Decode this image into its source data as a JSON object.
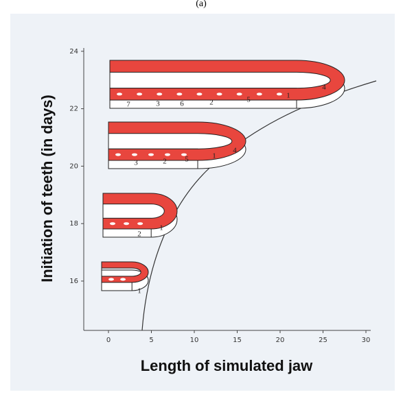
{
  "figure_label": "(a)",
  "y_axis": {
    "label": "Initiation of teeth (in days)",
    "ticks": [
      16,
      18,
      20,
      22,
      24
    ]
  },
  "x_axis": {
    "label": "Length of simulated jaw",
    "ticks": [
      0,
      5,
      10,
      15,
      20,
      25,
      30
    ]
  },
  "jaws": [
    {
      "tooth_labels": [
        "1"
      ]
    },
    {
      "tooth_labels": [
        "2",
        "1"
      ]
    },
    {
      "tooth_labels": [
        "3",
        "2",
        "5",
        "1",
        "4"
      ]
    },
    {
      "tooth_labels": [
        "7",
        "3",
        "6",
        "2",
        "5",
        "1",
        "4"
      ]
    }
  ]
}
